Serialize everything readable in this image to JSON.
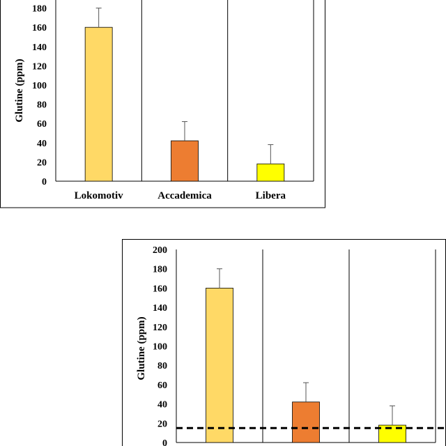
{
  "chart_data": [
    {
      "type": "bar",
      "categories": [
        "Lokomotiv",
        "Accademica",
        "Libera"
      ],
      "values": [
        160,
        42,
        18
      ],
      "errors": [
        20,
        20,
        20
      ],
      "colors": [
        "#FFD966",
        "#ED7D31",
        "#FFFF00"
      ],
      "ylabel": "Glutine (ppm)",
      "ylim": [
        0,
        200
      ],
      "yticks": [
        "0",
        "20",
        "40",
        "60",
        "80",
        "100",
        "120",
        "140",
        "160",
        "180"
      ],
      "grid": false,
      "category_separators": true
    },
    {
      "type": "bar",
      "categories": [
        "",
        "",
        ""
      ],
      "values": [
        160,
        42,
        18
      ],
      "errors": [
        20,
        20,
        20
      ],
      "colors": [
        "#FFD966",
        "#ED7D31",
        "#FFFF00"
      ],
      "ylabel": "Glutine (ppm)",
      "ylim": [
        0,
        200
      ],
      "yticks": [
        "0",
        "20",
        "40",
        "60",
        "80",
        "100",
        "120",
        "140",
        "160",
        "180",
        "200"
      ],
      "reference_line": {
        "y": 15,
        "style": "dashed",
        "color": "#000000"
      },
      "grid": false,
      "category_separators": true
    }
  ]
}
